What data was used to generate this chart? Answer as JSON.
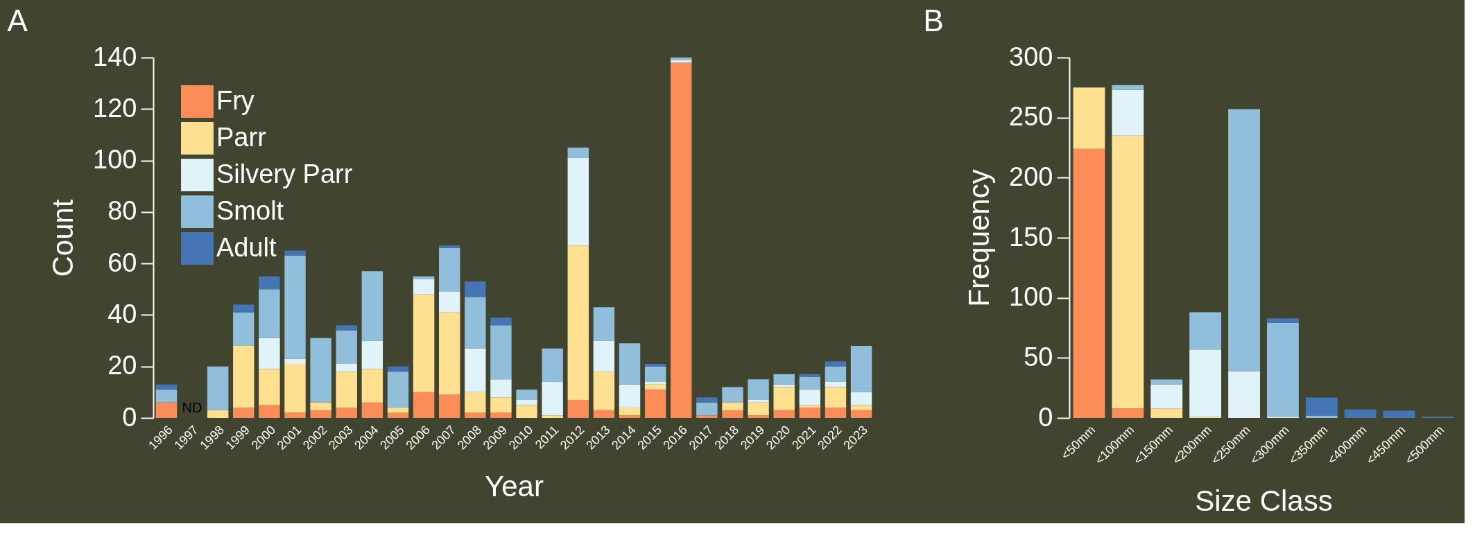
{
  "chart_data": [
    {
      "type": "bar",
      "title": "A",
      "xlabel": "Year",
      "ylabel": "Count",
      "stacked": true,
      "ylim": [
        0,
        140
      ],
      "yticks": [
        0,
        20,
        40,
        60,
        80,
        100,
        120,
        140
      ],
      "grid": false,
      "legend": "top left",
      "categories": [
        "1996",
        "1997",
        "1998",
        "1999",
        "2000",
        "2001",
        "2002",
        "2003",
        "2004",
        "2005",
        "2006",
        "2007",
        "2008",
        "2009",
        "2010",
        "2011",
        "2012",
        "2013",
        "2014",
        "2015",
        "2016",
        "2017",
        "2018",
        "2019",
        "2020",
        "2021",
        "2022",
        "2023"
      ],
      "series": [
        {
          "name": "Fry",
          "color": "#fc8d59",
          "values": [
            6,
            0,
            0,
            4,
            5,
            2,
            3,
            4,
            6,
            2,
            10,
            9,
            2,
            2,
            0,
            0,
            7,
            3,
            1,
            11,
            138,
            1,
            3,
            1,
            3,
            4,
            4,
            3
          ]
        },
        {
          "name": "Parr",
          "color": "#fee090",
          "values": [
            0,
            0,
            3,
            24,
            14,
            19,
            3,
            14,
            13,
            2,
            38,
            32,
            8,
            6,
            5,
            1,
            60,
            15,
            3,
            2,
            0,
            0,
            3,
            5,
            9,
            1,
            8,
            2
          ]
        },
        {
          "name": "Silvery Parr",
          "color": "#e0f3f8",
          "values": [
            0,
            0,
            0,
            0,
            12,
            2,
            0,
            3,
            11,
            0,
            6,
            8,
            17,
            7,
            2,
            13,
            34,
            12,
            9,
            1,
            1,
            0,
            0,
            1,
            1,
            6,
            2,
            5
          ]
        },
        {
          "name": "Smolt",
          "color": "#91bfdb",
          "values": [
            5,
            0,
            17,
            13,
            19,
            40,
            25,
            13,
            27,
            14,
            1,
            17,
            20,
            21,
            4,
            13,
            4,
            13,
            16,
            6,
            1,
            5,
            6,
            8,
            4,
            5,
            6,
            18
          ]
        },
        {
          "name": "Adult",
          "color": "#4575b4",
          "values": [
            2,
            0,
            0,
            3,
            5,
            2,
            0,
            2,
            0,
            2,
            0,
            1,
            6,
            3,
            0,
            0,
            0,
            0,
            0,
            1,
            0,
            2,
            0,
            0,
            0,
            1,
            2,
            0
          ]
        }
      ],
      "annotations": [
        {
          "text": "ND",
          "x": "1997",
          "y": 0
        }
      ]
    },
    {
      "type": "bar",
      "title": "B",
      "xlabel": "Size Class",
      "ylabel": "Frequency",
      "stacked": true,
      "ylim": [
        0,
        300
      ],
      "yticks": [
        0,
        50,
        100,
        150,
        200,
        250,
        300
      ],
      "grid": false,
      "categories": [
        "<50mm",
        "<100mm",
        "<150mm",
        "<200mm",
        "<250mm",
        "<300mm",
        "<350mm",
        "<400mm",
        "<450mm",
        "<500mm"
      ],
      "series": [
        {
          "color": "#fc8d59",
          "values": [
            224,
            8,
            0,
            0,
            0,
            0,
            0,
            0,
            0,
            0
          ]
        },
        {
          "color": "#fee090",
          "values": [
            51,
            227,
            8,
            1,
            0,
            0,
            0,
            0,
            0,
            0
          ]
        },
        {
          "color": "#e0f3f8",
          "values": [
            0,
            38,
            20,
            56,
            39,
            1,
            0,
            0,
            0,
            0
          ]
        },
        {
          "color": "#91bfdb",
          "values": [
            0,
            4,
            4,
            31,
            218,
            78,
            2,
            0,
            0,
            0
          ]
        },
        {
          "color": "#4575b4",
          "values": [
            0,
            0,
            0,
            0,
            0,
            4,
            15,
            7,
            6,
            1
          ]
        }
      ]
    }
  ]
}
